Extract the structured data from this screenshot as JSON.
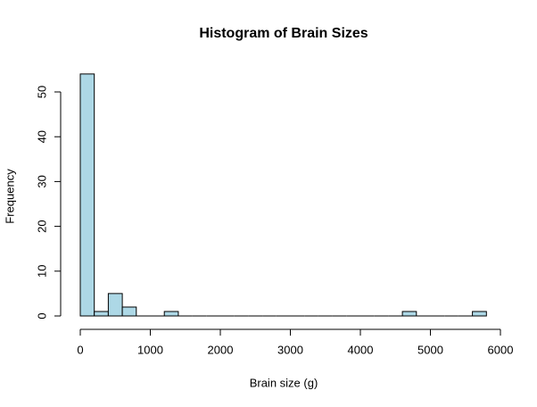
{
  "chart_data": {
    "type": "histogram",
    "title": "Histogram of Brain Sizes",
    "x_label": "Brain size (g)",
    "y_label": "Frequency",
    "bins": [
      0,
      200,
      400,
      600,
      800,
      1000,
      1200,
      1400,
      1600,
      1800,
      2000,
      2200,
      2400,
      2600,
      2800,
      3000,
      3200,
      3400,
      3600,
      3800,
      4000,
      4200,
      4400,
      4600,
      4800,
      5000,
      5200,
      5400,
      5600,
      5800
    ],
    "counts": [
      54,
      1,
      5,
      2,
      0,
      0,
      1,
      0,
      0,
      0,
      0,
      0,
      0,
      0,
      0,
      0,
      0,
      0,
      0,
      0,
      0,
      0,
      0,
      1,
      0,
      0,
      0,
      0,
      1
    ],
    "color": "#add8e6",
    "xlim": [
      0,
      6000
    ],
    "xticks": [
      0,
      1000,
      2000,
      3000,
      4000,
      5000,
      6000
    ],
    "ylim": [
      0,
      50
    ],
    "yticks": [
      0,
      10,
      20,
      30,
      40,
      50
    ]
  }
}
